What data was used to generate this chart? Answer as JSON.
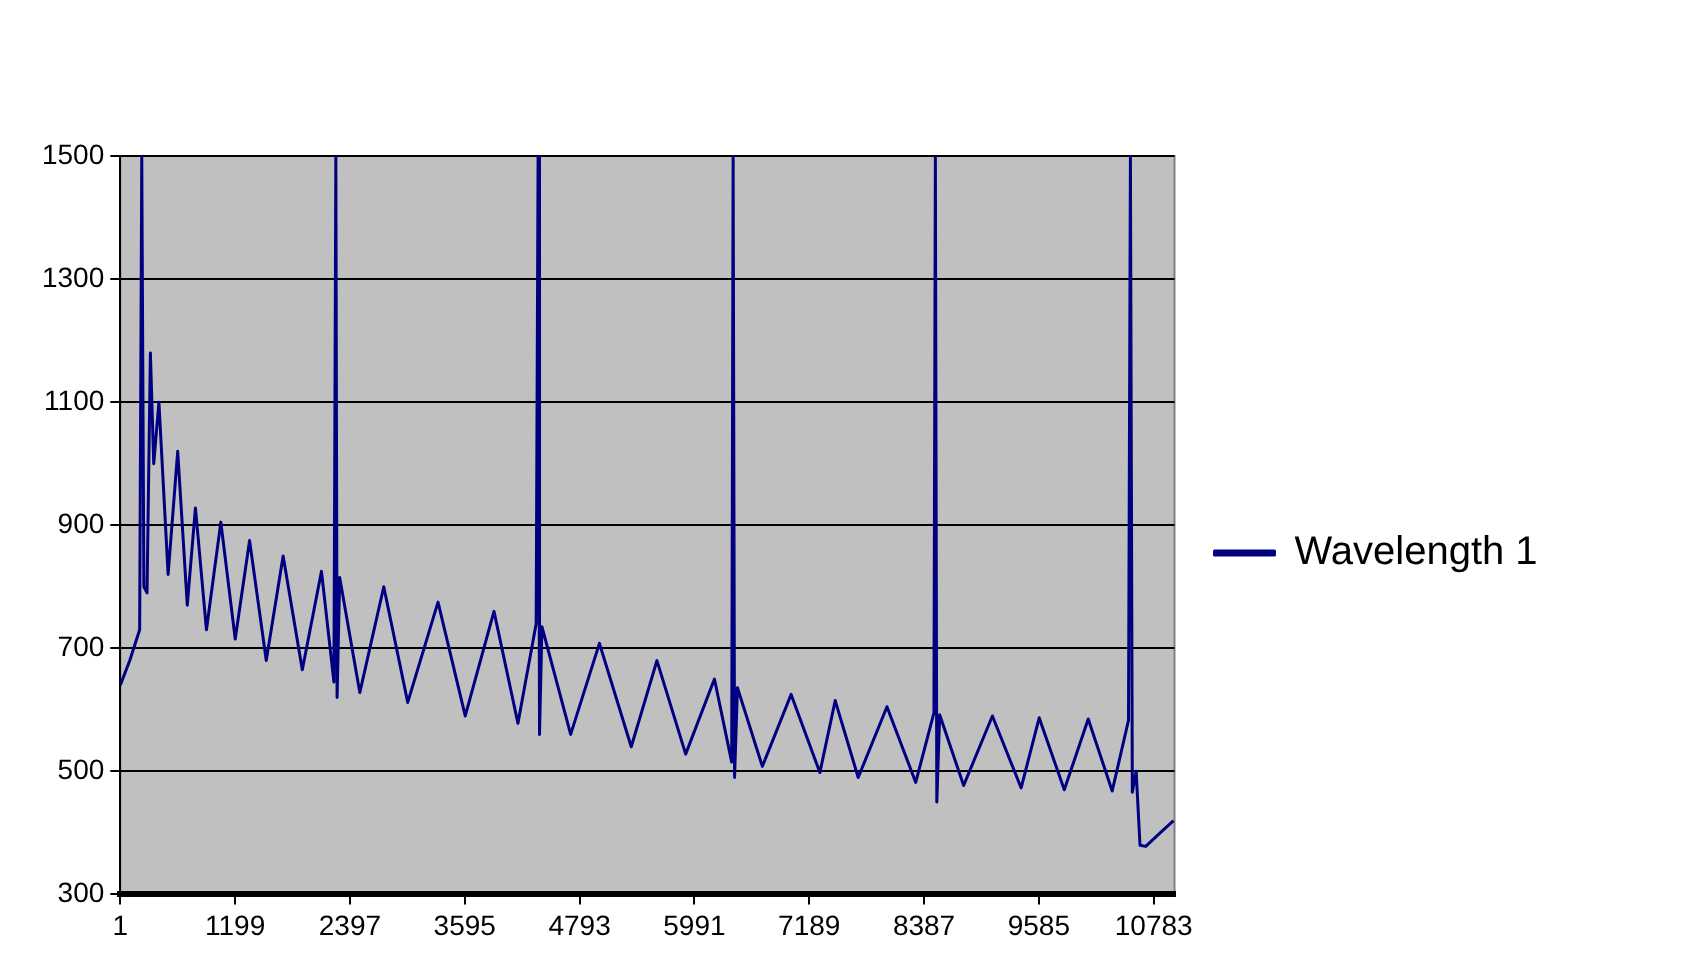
{
  "chart_data": {
    "type": "line",
    "x": [
      1,
      100,
      203,
      225,
      247,
      280,
      315,
      350,
      404,
      500,
      600,
      700,
      785,
      900,
      1050,
      1200,
      1350,
      1524,
      1700,
      1900,
      2100,
      2230,
      2250,
      2263,
      2290,
      2500,
      2750,
      3000,
      3316,
      3600,
      3900,
      4150,
      4340,
      4360,
      4375,
      4400,
      4700,
      5000,
      5332,
      5600,
      5900,
      6200,
      6380,
      6395,
      6410,
      6440,
      6700,
      7000,
      7300,
      7460,
      7700,
      8000,
      8300,
      8490,
      8505,
      8520,
      8550,
      8800,
      9100,
      9400,
      9588,
      9850,
      10100,
      10350,
      10520,
      10540,
      10560,
      10600,
      10640,
      10700,
      10850,
      10990
    ],
    "series": [
      {
        "name": "Wavelength 1",
        "color": "#000080",
        "values": [
          640,
          680,
          730,
          1500,
          800,
          790,
          1180,
          1000,
          1100,
          820,
          1020,
          770,
          928,
          730,
          905,
          715,
          875,
          680,
          850,
          665,
          825,
          645,
          1500,
          620,
          815,
          628,
          800,
          612,
          775,
          590,
          760,
          578,
          740,
          1500,
          560,
          735,
          560,
          708,
          540,
          680,
          528,
          650,
          515,
          1500,
          490,
          636,
          508,
          625,
          498,
          615,
          490,
          605,
          482,
          595,
          1500,
          450,
          592,
          477,
          590,
          473,
          587,
          470,
          585,
          468,
          583,
          1500,
          466,
          500,
          380,
          378,
          400,
          420
        ]
      }
    ],
    "xlim": [
      1,
      11000
    ],
    "xticks": [
      1,
      1199,
      2397,
      3595,
      4793,
      5991,
      7189,
      8387,
      9585,
      10783
    ],
    "ylim": [
      300,
      1500
    ],
    "yticks": [
      300,
      500,
      700,
      900,
      1100,
      1300,
      1500
    ],
    "grid": "y",
    "legend": "right",
    "marker": "none",
    "line_style": "solid"
  }
}
